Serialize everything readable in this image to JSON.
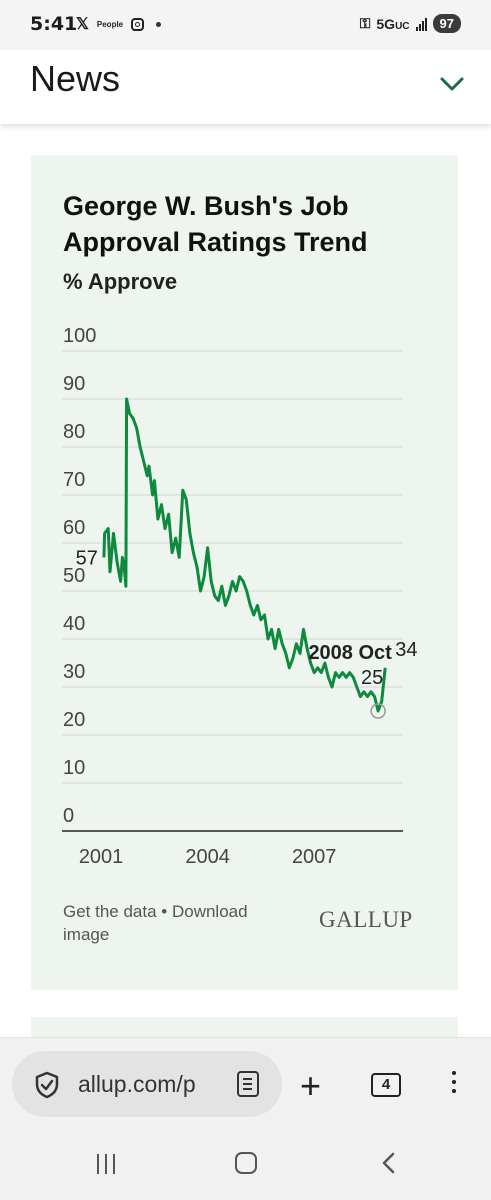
{
  "status_bar": {
    "time": "5:41",
    "left_icons": [
      "x-logo",
      "people-logo",
      "instagram-icon",
      "dot"
    ],
    "people_label": "People",
    "network": "5G",
    "network_sub": "UC",
    "battery": "97"
  },
  "header": {
    "title": "News"
  },
  "chart_card": {
    "title": "George W. Bush's Job Approval Ratings Trend",
    "subtitle": "% Approve",
    "footer_link": "Get the data • Download image",
    "brand": "GALLUP"
  },
  "chart_data": {
    "type": "line",
    "title": "George W. Bush's Job Approval Ratings Trend",
    "ylabel": "% Approve",
    "ylim": [
      0,
      100
    ],
    "yticks": [
      "100",
      "90",
      "80",
      "70",
      "60",
      "50",
      "40",
      "30",
      "20",
      "10",
      "0"
    ],
    "xticks": [
      "2001",
      "2004",
      "2007"
    ],
    "x_range": [
      1999.9,
      2009.5
    ],
    "series": [
      {
        "color": "#0e8a3e",
        "points": [
          [
            2001.08,
            57
          ],
          [
            2001.1,
            62
          ],
          [
            2001.2,
            63
          ],
          [
            2001.25,
            54
          ],
          [
            2001.35,
            62
          ],
          [
            2001.45,
            56
          ],
          [
            2001.55,
            52
          ],
          [
            2001.6,
            57
          ],
          [
            2001.65,
            55
          ],
          [
            2001.7,
            51
          ],
          [
            2001.72,
            90
          ],
          [
            2001.8,
            87
          ],
          [
            2001.9,
            86
          ],
          [
            2002.0,
            84
          ],
          [
            2002.1,
            80
          ],
          [
            2002.2,
            77
          ],
          [
            2002.3,
            74
          ],
          [
            2002.35,
            76
          ],
          [
            2002.45,
            70
          ],
          [
            2002.5,
            73
          ],
          [
            2002.6,
            65
          ],
          [
            2002.7,
            68
          ],
          [
            2002.8,
            63
          ],
          [
            2002.9,
            66
          ],
          [
            2003.0,
            58
          ],
          [
            2003.1,
            61
          ],
          [
            2003.2,
            57
          ],
          [
            2003.3,
            71
          ],
          [
            2003.4,
            69
          ],
          [
            2003.5,
            62
          ],
          [
            2003.6,
            58
          ],
          [
            2003.7,
            55
          ],
          [
            2003.8,
            50
          ],
          [
            2003.9,
            53
          ],
          [
            2004.0,
            59
          ],
          [
            2004.1,
            52
          ],
          [
            2004.2,
            49
          ],
          [
            2004.3,
            48
          ],
          [
            2004.4,
            51
          ],
          [
            2004.5,
            47
          ],
          [
            2004.6,
            49
          ],
          [
            2004.7,
            52
          ],
          [
            2004.8,
            50
          ],
          [
            2004.9,
            53
          ],
          [
            2005.0,
            52
          ],
          [
            2005.1,
            50
          ],
          [
            2005.2,
            47
          ],
          [
            2005.3,
            45
          ],
          [
            2005.4,
            47
          ],
          [
            2005.5,
            44
          ],
          [
            2005.6,
            45
          ],
          [
            2005.7,
            40
          ],
          [
            2005.8,
            42
          ],
          [
            2005.9,
            38
          ],
          [
            2006.0,
            42
          ],
          [
            2006.1,
            39
          ],
          [
            2006.2,
            37
          ],
          [
            2006.3,
            34
          ],
          [
            2006.4,
            36
          ],
          [
            2006.5,
            39
          ],
          [
            2006.6,
            37
          ],
          [
            2006.7,
            42
          ],
          [
            2006.8,
            38
          ],
          [
            2006.9,
            35
          ],
          [
            2007.0,
            33
          ],
          [
            2007.1,
            34
          ],
          [
            2007.2,
            33
          ],
          [
            2007.3,
            35
          ],
          [
            2007.4,
            32
          ],
          [
            2007.5,
            30
          ],
          [
            2007.6,
            33
          ],
          [
            2007.7,
            32
          ],
          [
            2007.8,
            33
          ],
          [
            2007.9,
            32
          ],
          [
            2008.0,
            33
          ],
          [
            2008.1,
            32
          ],
          [
            2008.2,
            30
          ],
          [
            2008.3,
            28
          ],
          [
            2008.4,
            29
          ],
          [
            2008.5,
            28
          ],
          [
            2008.6,
            29
          ],
          [
            2008.7,
            28
          ],
          [
            2008.8,
            25
          ],
          [
            2008.9,
            27
          ],
          [
            2009.0,
            34
          ]
        ]
      }
    ],
    "annotations": {
      "start_value": "57",
      "end_value": "34",
      "highlight_label": "2008 Oct",
      "highlight_value": "25",
      "highlight_point": [
        2008.8,
        25
      ]
    },
    "grid": true
  },
  "browser": {
    "url": "allup.com/p",
    "tabs_count": "4"
  }
}
